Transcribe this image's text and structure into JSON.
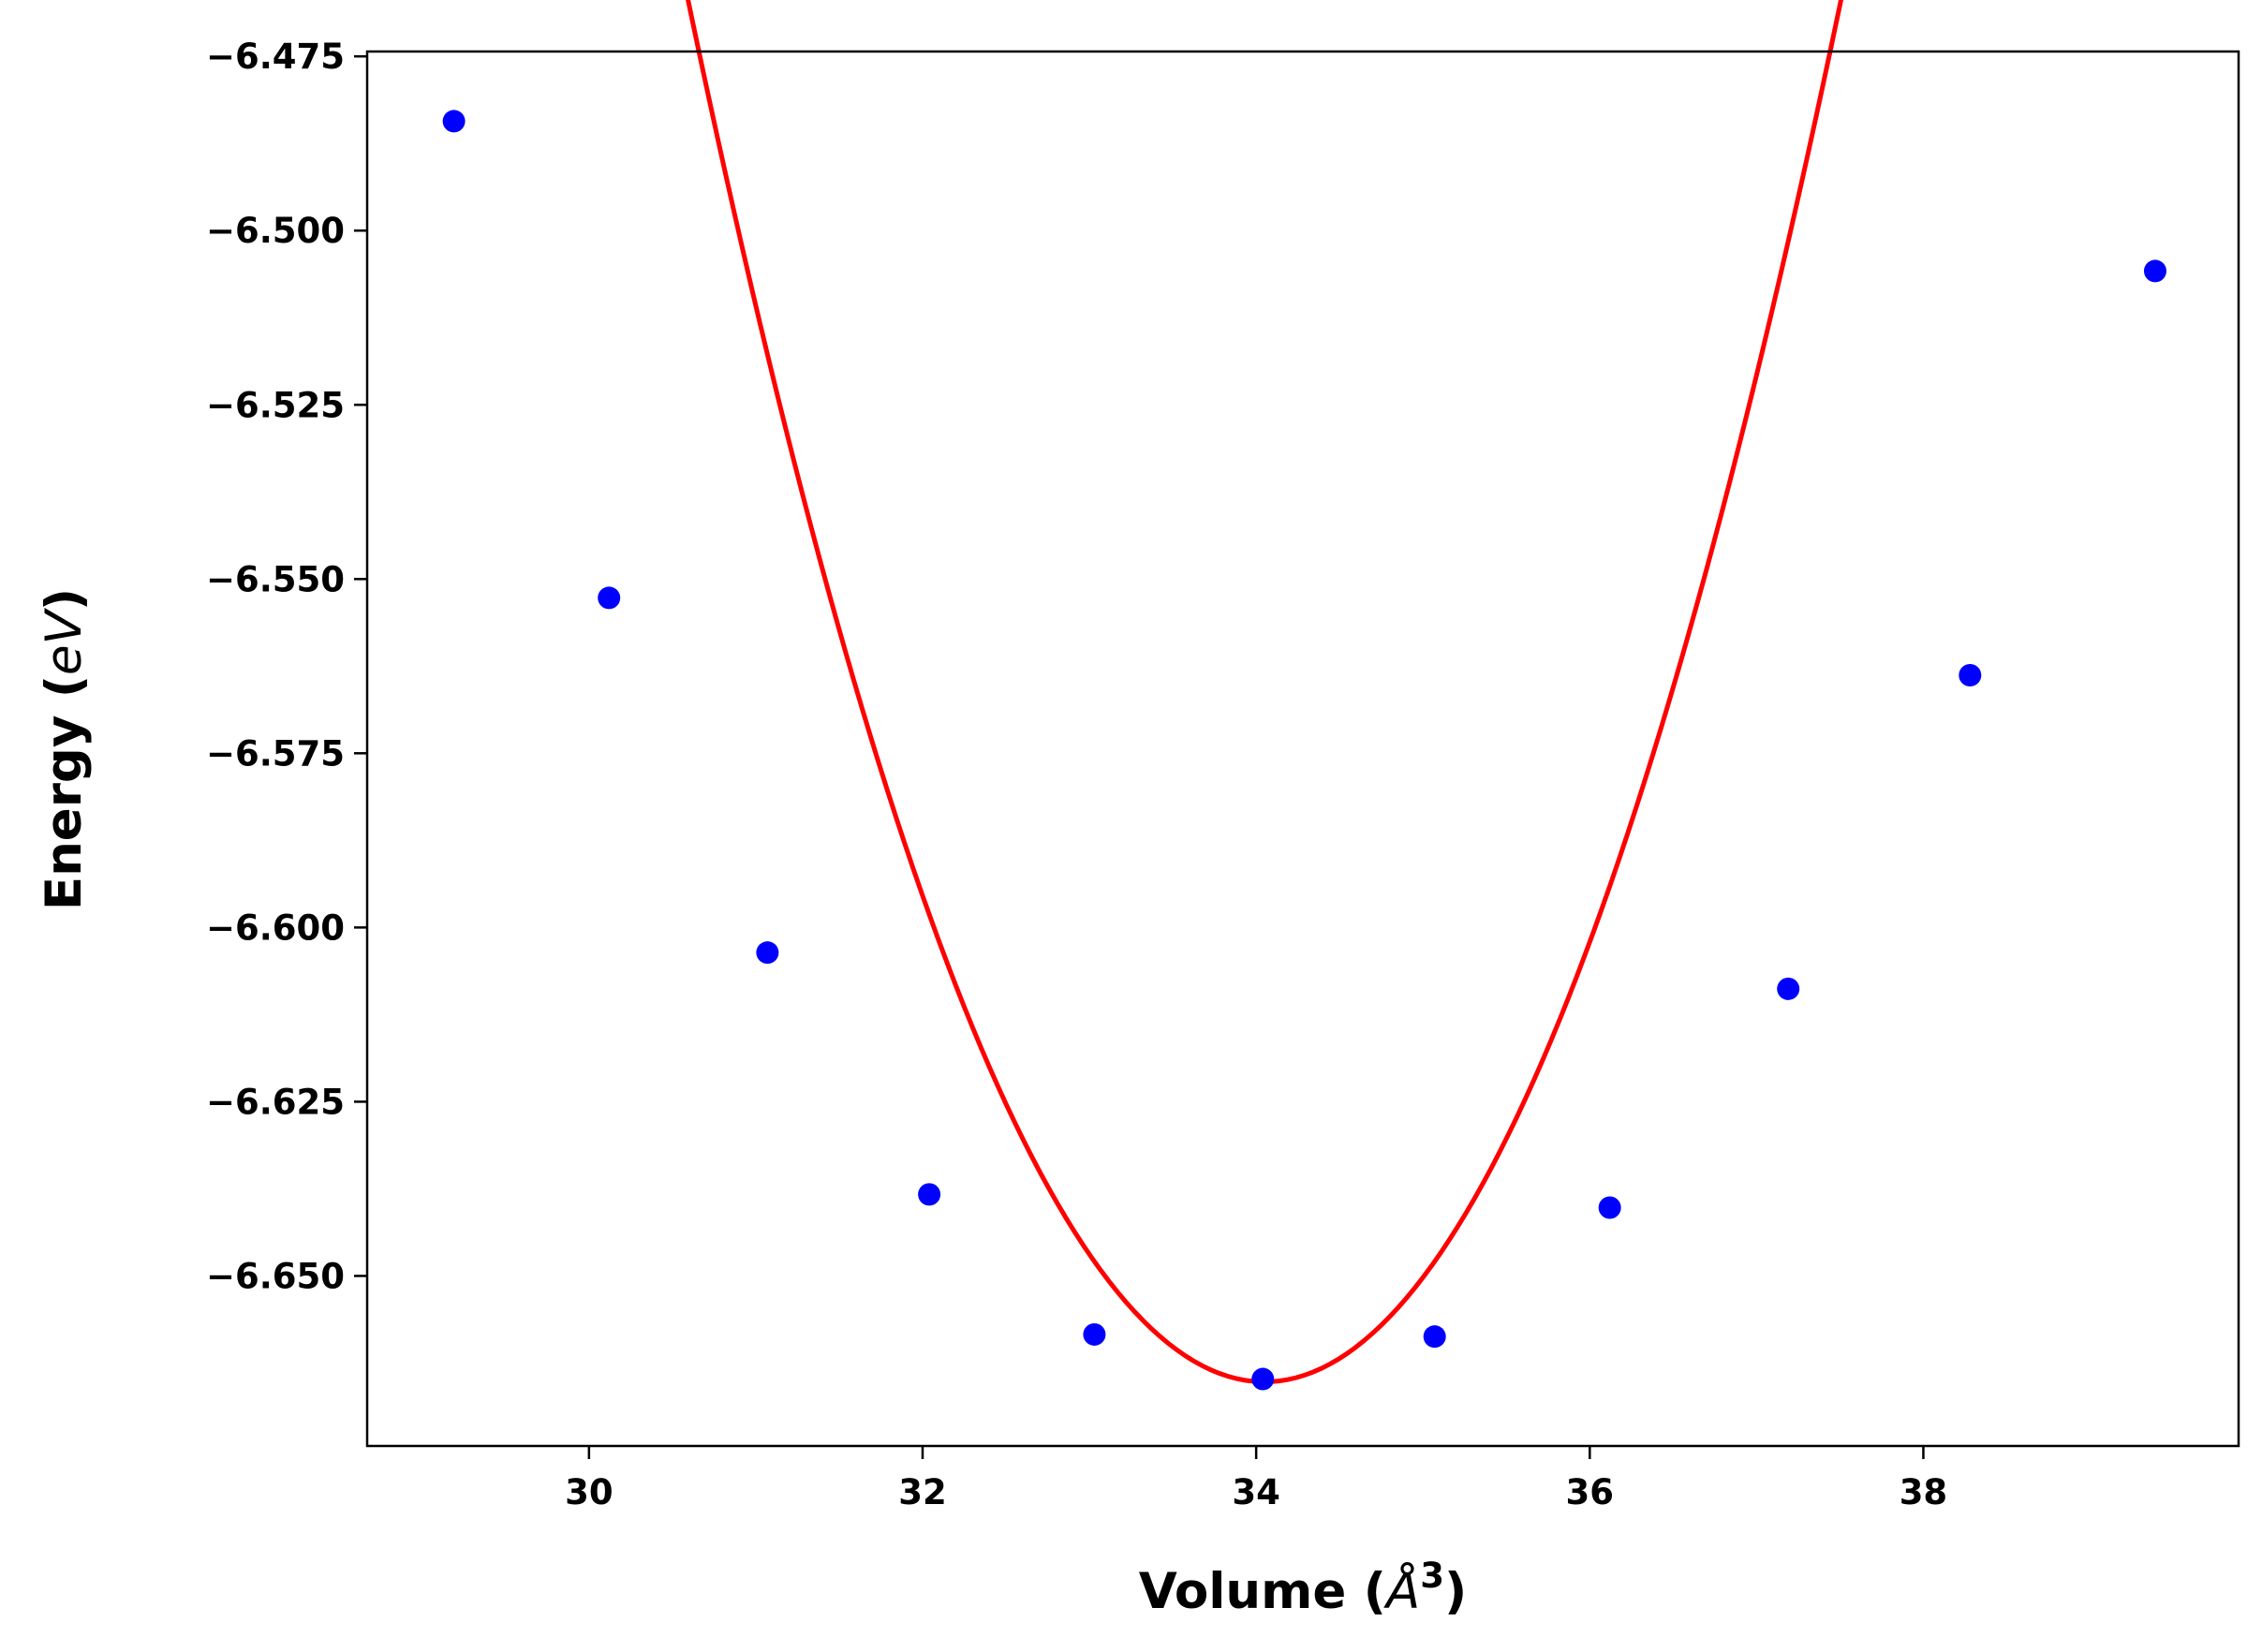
{
  "chart_data": {
    "type": "scatter",
    "title": "",
    "xlabel": "Volume (Å³)",
    "ylabel": "Energy (eV)",
    "xlabel_parts": {
      "prefix": "Volume (",
      "math": "Å",
      "sup": "3",
      "suffix": ")"
    },
    "ylabel_parts": {
      "prefix": "Energy (",
      "math": "eV",
      "suffix": ")"
    },
    "xlim": [
      28.67,
      39.89
    ],
    "ylim": [
      -6.6744,
      -6.4743
    ],
    "xticks": [
      30,
      32,
      34,
      36,
      38
    ],
    "xtick_labels": [
      "30",
      "32",
      "34",
      "36",
      "38"
    ],
    "yticks": [
      -6.475,
      -6.5,
      -6.525,
      -6.55,
      -6.575,
      -6.6,
      -6.625,
      -6.65
    ],
    "ytick_labels": [
      "−6.475",
      "−6.500",
      "−6.525",
      "−6.550",
      "−6.575",
      "−6.600",
      "−6.625",
      "−6.650"
    ],
    "grid": false,
    "legend": "none",
    "series": [
      {
        "kind": "points",
        "color": "#0000ff",
        "x": [
          29.19,
          30.12,
          31.07,
          32.04,
          33.03,
          34.04,
          35.07,
          36.12,
          37.19,
          38.28,
          39.39
        ],
        "y": [
          -6.4843,
          -6.5527,
          -6.6036,
          -6.6383,
          -6.6584,
          -6.6648,
          -6.6587,
          -6.6402,
          -6.6088,
          -6.5638,
          -6.5058
        ]
      },
      {
        "kind": "line",
        "color": "#ff0000",
        "fit": {
          "type": "quadratic",
          "vertex_x": 34.05,
          "vertex_y": -6.6652,
          "curvature": 0.0166
        }
      }
    ]
  }
}
